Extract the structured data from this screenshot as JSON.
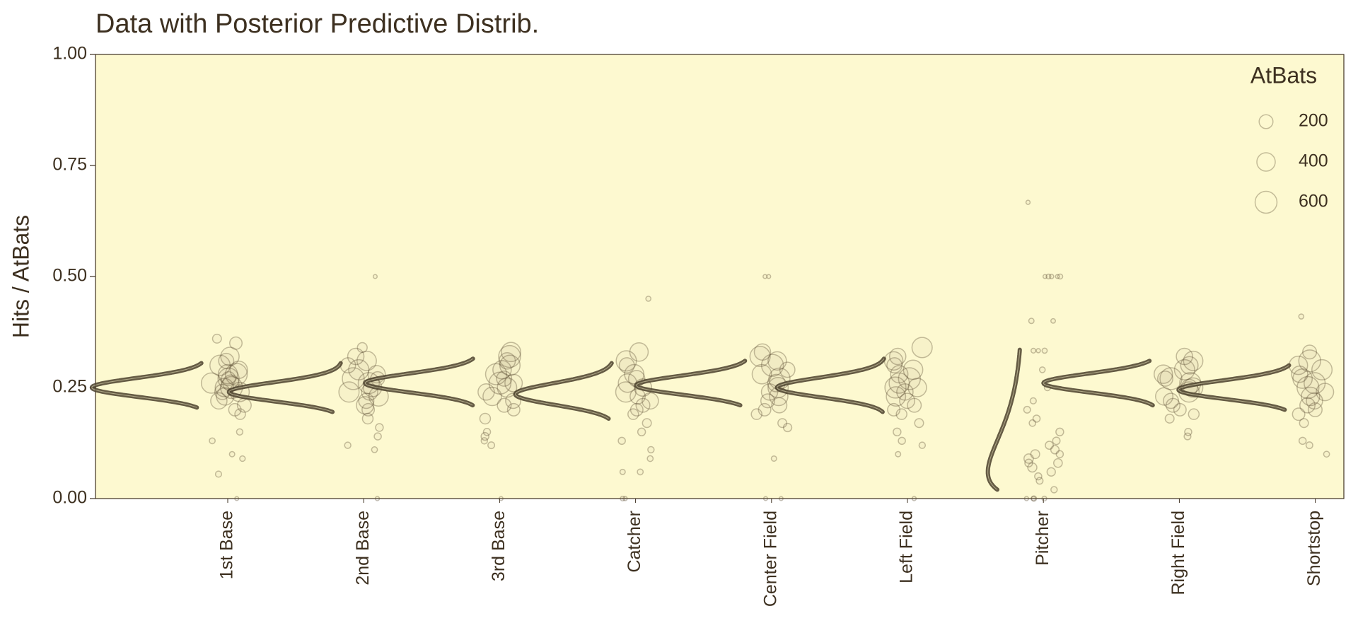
{
  "chart_data": {
    "type": "scatter",
    "title": "Data with Posterior Predictive Distrib.",
    "y_label": "Hits / AtBats",
    "ylim": [
      0,
      1
    ],
    "yticks": [
      {
        "value": 0,
        "label": "0.00"
      },
      {
        "value": 0.25,
        "label": "0.25"
      },
      {
        "value": 0.5,
        "label": "0.50"
      },
      {
        "value": 0.75,
        "label": "0.75"
      },
      {
        "value": 1,
        "label": "1.00"
      }
    ],
    "background": "#fdf9d0",
    "point_color": "#5a4a30",
    "curve_color": "#4a3f2c",
    "legend": {
      "title": "AtBats",
      "sizes": [
        200,
        400,
        600
      ],
      "position": "top-right"
    },
    "groups": [
      {
        "name": "1st Base",
        "curve": {
          "mode": 0.25,
          "kappa": 420,
          "hdi": [
            0.205,
            0.305
          ]
        },
        "ratio": [
          0.36,
          0.35,
          0.32,
          0.31,
          0.3,
          0.29,
          0.28,
          0.28,
          0.27,
          0.27,
          0.26,
          0.26,
          0.25,
          0.25,
          0.24,
          0.24,
          0.23,
          0.22,
          0.21,
          0.2,
          0.19,
          0.15,
          0.13,
          0.1,
          0.09,
          0.055,
          0
        ],
        "atbats": [
          60,
          150,
          400,
          250,
          500,
          350,
          600,
          450,
          550,
          200,
          500,
          300,
          600,
          400,
          450,
          250,
          350,
          300,
          200,
          150,
          100,
          20,
          15,
          10,
          12,
          18,
          2
        ]
      },
      {
        "name": "2nd Base",
        "curve": {
          "mode": 0.24,
          "kappa": 400,
          "hdi": [
            0.195,
            0.305
          ]
        },
        "ratio": [
          0.5,
          0.34,
          0.32,
          0.31,
          0.3,
          0.29,
          0.28,
          0.27,
          0.27,
          0.26,
          0.25,
          0.24,
          0.24,
          0.23,
          0.22,
          0.21,
          0.2,
          0.18,
          0.16,
          0.14,
          0.12,
          0.11,
          0
        ],
        "atbats": [
          2,
          80,
          300,
          450,
          250,
          500,
          350,
          600,
          200,
          550,
          400,
          500,
          300,
          450,
          250,
          350,
          150,
          100,
          40,
          30,
          20,
          15,
          3
        ]
      },
      {
        "name": "3rd Base",
        "curve": {
          "mode": 0.26,
          "kappa": 420,
          "hdi": [
            0.21,
            0.315
          ]
        },
        "ratio": [
          0.33,
          0.32,
          0.31,
          0.3,
          0.29,
          0.28,
          0.27,
          0.26,
          0.26,
          0.25,
          0.24,
          0.23,
          0.22,
          0.21,
          0.2,
          0.18,
          0.15,
          0.14,
          0.13,
          0.12,
          0
        ],
        "atbats": [
          450,
          600,
          300,
          500,
          400,
          550,
          250,
          600,
          350,
          450,
          300,
          400,
          250,
          200,
          150,
          100,
          30,
          40,
          20,
          25,
          2
        ]
      },
      {
        "name": "Catcher",
        "curve": {
          "mode": 0.235,
          "kappa": 300,
          "hdi": [
            0.18,
            0.305
          ]
        },
        "ratio": [
          0.45,
          0.33,
          0.31,
          0.3,
          0.28,
          0.27,
          0.26,
          0.25,
          0.24,
          0.23,
          0.22,
          0.21,
          0.2,
          0.19,
          0.17,
          0.15,
          0.13,
          0.11,
          0.09,
          0.06,
          0.06,
          0,
          0
        ],
        "atbats": [
          8,
          400,
          500,
          250,
          450,
          300,
          400,
          350,
          500,
          250,
          300,
          200,
          150,
          100,
          60,
          40,
          30,
          20,
          15,
          15,
          10,
          3,
          5
        ]
      },
      {
        "name": "Center Field",
        "curve": {
          "mode": 0.255,
          "kappa": 420,
          "hdi": [
            0.21,
            0.31
          ]
        },
        "ratio": [
          0.5,
          0.5,
          0.33,
          0.32,
          0.31,
          0.3,
          0.29,
          0.28,
          0.27,
          0.26,
          0.25,
          0.24,
          0.23,
          0.22,
          0.21,
          0.2,
          0.19,
          0.17,
          0.16,
          0.09,
          0,
          0
        ],
        "atbats": [
          2,
          2,
          300,
          500,
          400,
          600,
          250,
          450,
          550,
          350,
          500,
          300,
          400,
          200,
          250,
          150,
          100,
          60,
          50,
          10,
          2,
          2
        ]
      },
      {
        "name": "Left Field",
        "curve": {
          "mode": 0.25,
          "kappa": 380,
          "hdi": [
            0.195,
            0.315
          ]
        },
        "ratio": [
          0.34,
          0.32,
          0.31,
          0.3,
          0.29,
          0.28,
          0.27,
          0.26,
          0.25,
          0.25,
          0.24,
          0.23,
          0.22,
          0.21,
          0.2,
          0.19,
          0.17,
          0.15,
          0.13,
          0.12,
          0.1,
          0
        ],
        "atbats": [
          500,
          300,
          400,
          250,
          450,
          350,
          600,
          500,
          400,
          550,
          300,
          450,
          250,
          200,
          150,
          100,
          60,
          40,
          30,
          20,
          10,
          3
        ]
      },
      {
        "name": "Pitcher",
        "curve": {
          "mode": 0.06,
          "kappa": 14,
          "hdi": [
            0.02,
            0.335
          ]
        },
        "ratio": [
          0.667,
          0.5,
          0.5,
          0.5,
          0.5,
          0.5,
          0.4,
          0.4,
          0.333,
          0.333,
          0.333,
          0.29,
          0.25,
          0.22,
          0.2,
          0.18,
          0.17,
          0.15,
          0.13,
          0.12,
          0.11,
          0.1,
          0.1,
          0.09,
          0.08,
          0.08,
          0.07,
          0.06,
          0.05,
          0.04,
          0.02,
          0,
          0,
          0,
          0
        ],
        "atbats": [
          3,
          2,
          4,
          6,
          2,
          8,
          5,
          10,
          3,
          6,
          9,
          14,
          20,
          18,
          25,
          30,
          22,
          40,
          35,
          45,
          50,
          60,
          30,
          70,
          55,
          40,
          65,
          50,
          30,
          25,
          20,
          10,
          6,
          4,
          3
        ]
      },
      {
        "name": "Right Field",
        "curve": {
          "mode": 0.26,
          "kappa": 430,
          "hdi": [
            0.21,
            0.31
          ]
        },
        "ratio": [
          0.32,
          0.31,
          0.3,
          0.29,
          0.28,
          0.27,
          0.27,
          0.26,
          0.25,
          0.25,
          0.24,
          0.23,
          0.22,
          0.21,
          0.2,
          0.19,
          0.18,
          0.15,
          0.14
        ],
        "atbats": [
          300,
          450,
          350,
          500,
          400,
          600,
          250,
          550,
          450,
          300,
          500,
          350,
          250,
          200,
          150,
          100,
          60,
          30,
          25
        ]
      },
      {
        "name": "Shortstop",
        "curve": {
          "mode": 0.245,
          "kappa": 420,
          "hdi": [
            0.2,
            0.3
          ]
        },
        "ratio": [
          0.41,
          0.33,
          0.31,
          0.3,
          0.29,
          0.28,
          0.27,
          0.26,
          0.25,
          0.24,
          0.23,
          0.22,
          0.21,
          0.2,
          0.19,
          0.17,
          0.13,
          0.12,
          0.1
        ],
        "atbats": [
          8,
          200,
          600,
          400,
          500,
          300,
          450,
          550,
          600,
          350,
          400,
          300,
          250,
          200,
          150,
          60,
          30,
          25,
          15
        ]
      }
    ]
  }
}
